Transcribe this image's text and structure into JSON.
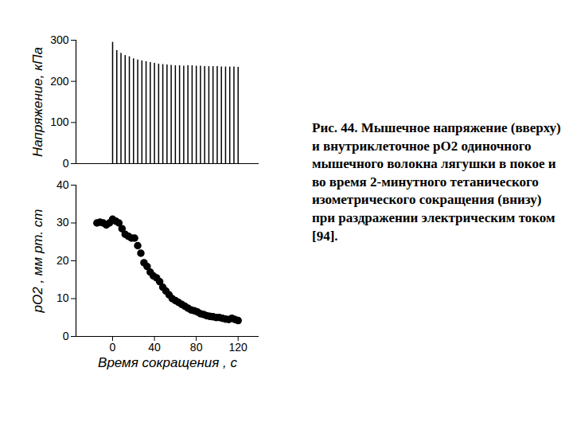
{
  "chart_data": [
    {
      "type": "bar",
      "y_label": "Напряжение, кПа",
      "x": [
        0,
        4,
        8,
        12,
        16,
        20,
        24,
        28,
        32,
        36,
        40,
        44,
        48,
        52,
        56,
        60,
        64,
        68,
        72,
        76,
        80,
        84,
        88,
        92,
        96,
        100,
        104,
        108,
        112,
        116,
        120
      ],
      "values": [
        295,
        275,
        268,
        263,
        260,
        255,
        252,
        250,
        248,
        246,
        244,
        242,
        241,
        240,
        239,
        238,
        238,
        237,
        238,
        238,
        237,
        237,
        236,
        236,
        236,
        236,
        235,
        235,
        235,
        235,
        234
      ],
      "color": "#000000",
      "xlim": [
        -35,
        140
      ],
      "ylim": [
        0,
        300
      ],
      "yticks": [
        0,
        100,
        200,
        300
      ],
      "tick_labels": "y",
      "grid": false
    },
    {
      "type": "scatter",
      "y_label": "pO2 , мм рт. ст",
      "x_label": "Время сокращения , с",
      "x": [
        -15,
        -12,
        -9,
        -6,
        -3,
        0,
        3,
        6,
        9,
        12,
        15,
        18,
        21,
        24,
        27,
        30,
        33,
        36,
        39,
        42,
        45,
        48,
        51,
        54,
        57,
        60,
        63,
        66,
        69,
        72,
        75,
        78,
        81,
        84,
        87,
        90,
        93,
        96,
        99,
        102,
        105,
        108,
        111,
        114,
        117,
        120
      ],
      "values": [
        30,
        30.2,
        30,
        29.5,
        30,
        31,
        30.5,
        30,
        28.5,
        27,
        26.5,
        26,
        26,
        24,
        22,
        19.5,
        18.5,
        17,
        16,
        15.5,
        14.5,
        13,
        12,
        11,
        10,
        9.5,
        9,
        8.5,
        8,
        7.5,
        7,
        6.8,
        6.5,
        6,
        5.8,
        5.5,
        5.3,
        5.2,
        5,
        5,
        4.8,
        4.6,
        4.5,
        4.8,
        4.5,
        4.2
      ],
      "color": "#000000",
      "marker": "circle",
      "xlim": [
        -35,
        140
      ],
      "xticks": [
        0,
        40,
        80,
        120
      ],
      "ylim": [
        0,
        40
      ],
      "yticks": [
        0,
        10,
        20,
        30,
        40
      ],
      "grid": false
    }
  ],
  "caption": "Рис. 44. Мышечное напряжение (вверху) и внутриклеточное pO2 одиночного мышечного волокна лягушки в покое и во время 2-минутного тетанического изометрического сокращения (внизу) при раздражении электрическим током [94]."
}
